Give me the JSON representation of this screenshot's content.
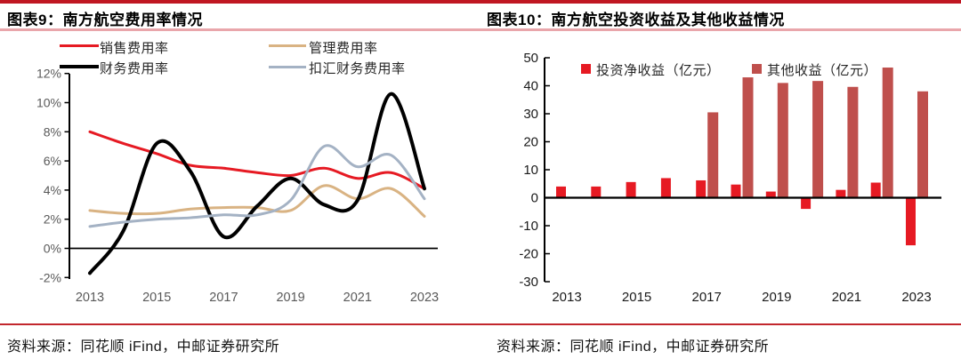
{
  "left_panel": {
    "title": "图表9：南方航空费用率情况",
    "source": "资料来源：同花顺 iFind，中邮证券研究所"
  },
  "right_panel": {
    "title": "图表10：南方航空投资收益及其他收益情况",
    "source": "资料来源：同花顺 iFind，中邮证券研究所"
  },
  "colors": {
    "top_rule": "#c01722",
    "title_underline": "#e9a6ab",
    "source_divider": "#c2272d",
    "bright_red": "#e61a23",
    "brick_red": "#bf4f4c",
    "tan": "#d9b383",
    "gray_blue": "#a4b2c4",
    "black_line": "#000000",
    "left_tick_text": "#595959",
    "right_tick_text": "#1a1a1a"
  },
  "chart_data": [
    {
      "type": "line",
      "title": "南方航空费用率情况",
      "x": [
        2013,
        2014,
        2015,
        2016,
        2017,
        2018,
        2019,
        2020,
        2021,
        2022,
        2023
      ],
      "x_tick_labels": [
        2013,
        2015,
        2017,
        2019,
        2021,
        2023
      ],
      "ylim": [
        -2,
        12
      ],
      "y_ticks": [
        12,
        10,
        8,
        6,
        4,
        2,
        0,
        -2
      ],
      "y_tick_suffix": "%",
      "grid": false,
      "legend_position": "top",
      "series": [
        {
          "name": "销售费用率",
          "color": "#e61a23",
          "width": 3,
          "values": [
            8.0,
            7.2,
            6.5,
            5.7,
            5.5,
            5.2,
            5.0,
            5.5,
            4.8,
            5.2,
            4.1
          ]
        },
        {
          "name": "管理费用率",
          "color": "#d9b383",
          "width": 3,
          "values": [
            2.6,
            2.4,
            2.4,
            2.7,
            2.8,
            2.8,
            2.6,
            4.3,
            3.4,
            4.1,
            2.2
          ]
        },
        {
          "name": "财务费用率",
          "color": "#000000",
          "width": 4,
          "values": [
            -1.7,
            1.2,
            7.2,
            5.3,
            0.8,
            2.9,
            4.8,
            3.0,
            3.3,
            10.6,
            4.1
          ]
        },
        {
          "name": "扣汇财务费用率",
          "color": "#a4b2c4",
          "width": 3,
          "values": [
            1.5,
            1.8,
            2.0,
            2.1,
            2.3,
            2.3,
            3.3,
            7.0,
            5.6,
            6.4,
            3.4
          ]
        }
      ]
    },
    {
      "type": "bar",
      "title": "南方航空投资收益及其他收益情况",
      "x": [
        2013,
        2014,
        2015,
        2016,
        2017,
        2018,
        2019,
        2020,
        2021,
        2022,
        2023
      ],
      "x_tick_labels": [
        2013,
        2015,
        2017,
        2019,
        2021,
        2023
      ],
      "ylim": [
        -30,
        50
      ],
      "y_ticks": [
        50,
        40,
        30,
        20,
        10,
        0,
        -10,
        -20,
        -30
      ],
      "grid": false,
      "legend_position": "top",
      "series": [
        {
          "name": "投资净收益（亿元）",
          "color": "#e61a23",
          "values": [
            4.0,
            4.0,
            5.6,
            7.0,
            6.2,
            4.7,
            2.2,
            -4.0,
            2.8,
            5.4,
            -17.0
          ]
        },
        {
          "name": "其他收益（亿元）",
          "color": "#bf4f4c",
          "values": [
            0,
            0,
            0,
            0,
            30.5,
            43.0,
            41.0,
            41.7,
            39.6,
            46.5,
            38.0
          ]
        }
      ]
    }
  ]
}
